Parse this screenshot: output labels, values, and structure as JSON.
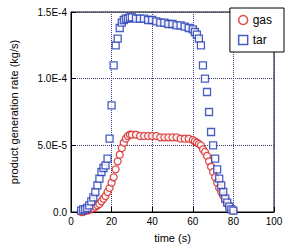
{
  "chart_data": {
    "type": "scatter",
    "x_label": "time (s)",
    "y_label": "product generation rate (kg/s)",
    "x": [
      5,
      6,
      7,
      8,
      9,
      10,
      11,
      12,
      13,
      14,
      15,
      16,
      17,
      18,
      19,
      20,
      21,
      22,
      23,
      24,
      25,
      26,
      27,
      28,
      29,
      30,
      32,
      34,
      36,
      38,
      40,
      42,
      44,
      46,
      48,
      50,
      52,
      54,
      56,
      58,
      60,
      61,
      62,
      63,
      64,
      65,
      66,
      67,
      68,
      69,
      70,
      71,
      72,
      73,
      74,
      75,
      76,
      77,
      78,
      79,
      80
    ],
    "series": [
      {
        "name": "gas",
        "color": "#d42020",
        "marker": "circle",
        "values": [
          0.0,
          0.0,
          1e-06,
          1e-06,
          2e-06,
          2e-06,
          3e-06,
          4e-06,
          5e-06,
          6e-06,
          8e-06,
          1e-05,
          1.2e-05,
          1.5e-05,
          1.8e-05,
          2.2e-05,
          2.6e-05,
          3.2e-05,
          3.8e-05,
          4.3e-05,
          4.8e-05,
          5.2e-05,
          5.5e-05,
          5.7e-05,
          5.8e-05,
          5.8e-05,
          5.8e-05,
          5.7e-05,
          5.7e-05,
          5.7e-05,
          5.7e-05,
          5.7e-05,
          5.6e-05,
          5.6e-05,
          5.6e-05,
          5.6e-05,
          5.6e-05,
          5.5e-05,
          5.5e-05,
          5.5e-05,
          5.4e-05,
          5.3e-05,
          5.2e-05,
          5.1e-05,
          5e-05,
          4.7e-05,
          4.5e-05,
          4.2e-05,
          3.8e-05,
          3.4e-05,
          3e-05,
          2.6e-05,
          2.2e-05,
          1.8e-05,
          1.5e-05,
          1.2e-05,
          9e-06,
          6e-06,
          4e-06,
          2e-06,
          1e-06
        ]
      },
      {
        "name": "tar",
        "color": "#1c34b4",
        "marker": "square",
        "values": [
          1e-06,
          2e-06,
          2e-06,
          3e-06,
          5e-06,
          8e-06,
          1.1e-05,
          1.5e-05,
          2e-05,
          2.5e-05,
          3e-05,
          3.3e-05,
          3.5e-05,
          4e-05,
          5.5e-05,
          8e-05,
          0.00011,
          0.000125,
          0.00013,
          0.000138,
          0.000142,
          0.000144,
          0.000145,
          0.000145,
          0.000146,
          0.000146,
          0.000145,
          0.000145,
          0.000145,
          0.000144,
          0.000144,
          0.000143,
          0.000142,
          0.000142,
          0.000141,
          0.000141,
          0.00014,
          0.00014,
          0.000139,
          0.000138,
          0.000137,
          0.000135,
          0.000133,
          0.00013,
          0.000125,
          0.00011,
          0.0001,
          9e-05,
          7.5e-05,
          6e-05,
          5e-05,
          4e-05,
          3.2e-05,
          2.5e-05,
          2e-05,
          1.5e-05,
          1e-05,
          7e-06,
          4e-06,
          2e-06,
          1e-06
        ]
      }
    ],
    "xlim": [
      0,
      100
    ],
    "xticks": [
      0,
      20,
      40,
      60,
      80,
      100
    ],
    "ylim": [
      0,
      0.00015
    ],
    "yticks": [
      {
        "value": 0,
        "label": "0.0"
      },
      {
        "value": 5e-05,
        "label": "5.0E-5"
      },
      {
        "value": 0.0001,
        "label": "1.0E-4"
      },
      {
        "value": 0.00015,
        "label": "1.5E-4"
      }
    ],
    "grid": true,
    "legend": "upper right"
  }
}
